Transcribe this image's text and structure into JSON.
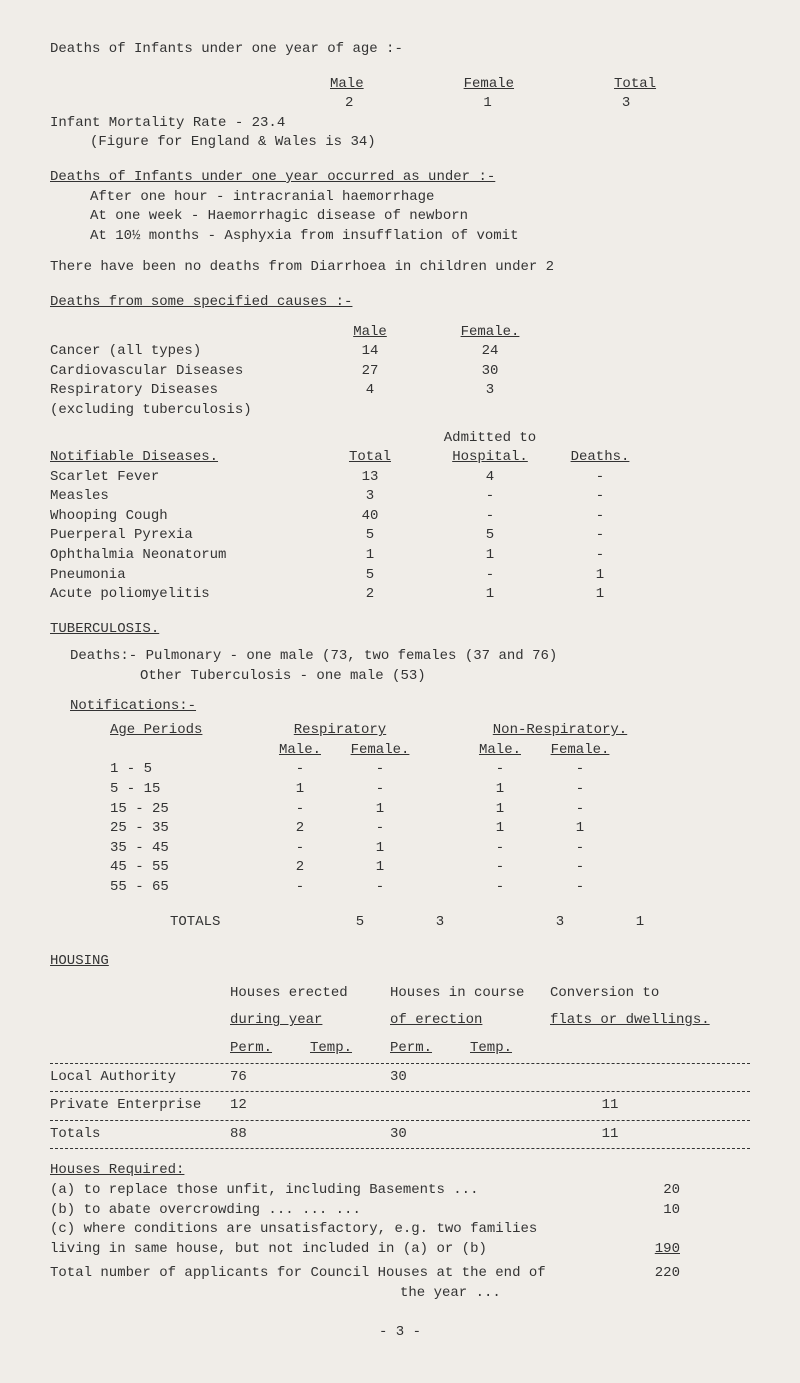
{
  "title": "Deaths of Infants under one year of age :-",
  "headers": {
    "male": "Male",
    "female": "Female",
    "total": "Total"
  },
  "topValues": {
    "male": "2",
    "female": "1",
    "total": "3"
  },
  "mortality": {
    "line1": "Infant Mortality Rate - 23.4",
    "line2": "(Figure for England & Wales is 34)"
  },
  "deathsUnder": {
    "title": "Deaths of Infants under one year occurred as under :-",
    "items": [
      "After one hour - intracranial haemorrhage",
      "At one week - Haemorrhagic disease of newborn",
      "At 10½ months - Asphyxia from insufflation of vomit"
    ]
  },
  "diarrhoea": "There have been no deaths from Diarrhoea in children under 2",
  "specifiedCauses": {
    "title": "Deaths from some specified causes :-",
    "headers": {
      "male": "Male",
      "female": "Female."
    },
    "rows": [
      {
        "label": "Cancer (all types)",
        "male": "14",
        "female": "24"
      },
      {
        "label": "Cardiovascular Diseases",
        "male": "27",
        "female": "30"
      },
      {
        "label": "Respiratory Diseases",
        "male": "4",
        "female": "3"
      },
      {
        "label": "(excluding tuberculosis)",
        "male": "",
        "female": ""
      }
    ]
  },
  "notifiable": {
    "admitted": "Admitted to",
    "title": "Notifiable Diseases.",
    "headers": {
      "total": "Total",
      "hospital": "Hospital.",
      "deaths": "Deaths."
    },
    "rows": [
      {
        "label": "Scarlet Fever",
        "total": "13",
        "hospital": "4",
        "deaths": "-"
      },
      {
        "label": "Measles",
        "total": "3",
        "hospital": "-",
        "deaths": "-"
      },
      {
        "label": "Whooping Cough",
        "total": "40",
        "hospital": "-",
        "deaths": "-"
      },
      {
        "label": "Puerperal Pyrexia",
        "total": "5",
        "hospital": "5",
        "deaths": "-"
      },
      {
        "label": "Ophthalmia Neonatorum",
        "total": "1",
        "hospital": "1",
        "deaths": "-"
      },
      {
        "label": "Pneumonia",
        "total": "5",
        "hospital": "-",
        "deaths": "1"
      },
      {
        "label": "Acute poliomyelitis",
        "total": "2",
        "hospital": "1",
        "deaths": "1"
      }
    ]
  },
  "tuberculosis": {
    "title": "TUBERCULOSIS.",
    "deaths": "Deaths:- Pulmonary - one male (73, two females (37 and 76)",
    "deaths2": "Other Tuberculosis - one male (53)",
    "notif": "Notifications:-",
    "ageLabel": "Age Periods",
    "respLabel": "Respiratory",
    "nonRespLabel": "Non-Respiratory.",
    "maleLabel": "Male.",
    "femaleLabel": "Female.",
    "ages": [
      {
        "range": "1 - 5",
        "rm": "-",
        "rf": "-",
        "nm": "-",
        "nf": "-"
      },
      {
        "range": "5 - 15",
        "rm": "1",
        "rf": "-",
        "nm": "1",
        "nf": "-"
      },
      {
        "range": "15 - 25",
        "rm": "-",
        "rf": "1",
        "nm": "1",
        "nf": "-"
      },
      {
        "range": "25 - 35",
        "rm": "2",
        "rf": "-",
        "nm": "1",
        "nf": "1"
      },
      {
        "range": "35 - 45",
        "rm": "-",
        "rf": "1",
        "nm": "-",
        "nf": "-"
      },
      {
        "range": "45 - 55",
        "rm": "2",
        "rf": "1",
        "nm": "-",
        "nf": "-"
      },
      {
        "range": "55 - 65",
        "rm": "-",
        "rf": "-",
        "nm": "-",
        "nf": "-"
      }
    ],
    "totals": {
      "label": "TOTALS",
      "rm": "5",
      "rf": "3",
      "nm": "3",
      "nf": "1"
    }
  },
  "housing": {
    "title": "HOUSING",
    "h1": "Houses erected",
    "h2": "during year",
    "h3": "Houses in course",
    "h4": "of erection",
    "h5": "Conversion to",
    "h6": "flats or dwellings.",
    "perm": "Perm.",
    "temp": "Temp.",
    "rows": [
      {
        "label": "Local Authority",
        "p1": "76",
        "t1": "",
        "p2": "30",
        "t2": "",
        "conv": ""
      },
      {
        "label": "Private Enterprise",
        "p1": "12",
        "t1": "",
        "p2": "",
        "t2": "",
        "conv": "11"
      }
    ],
    "totalsLabel": "Totals",
    "totals": {
      "p1": "88",
      "t1": "",
      "p2": "30",
      "t2": "",
      "conv": "11"
    },
    "required": {
      "title": "Houses Required:",
      "items": [
        {
          "label": "(a) to replace those unfit, including Basements    ...",
          "val": "20"
        },
        {
          "label": "(b) to abate overcrowding    ...         ...              ...",
          "val": "10"
        },
        {
          "label": "(c) where conditions are unsatisfactory, e.g. two families",
          "val": ""
        },
        {
          "label": "    living in same house, but not included in (a) or (b)",
          "val": "190"
        }
      ],
      "totalLabel": "Total number of applicants for Council Houses at the end of",
      "totalLabel2": "the year ...",
      "totalVal": "220"
    }
  },
  "pageNum": "- 3 -"
}
